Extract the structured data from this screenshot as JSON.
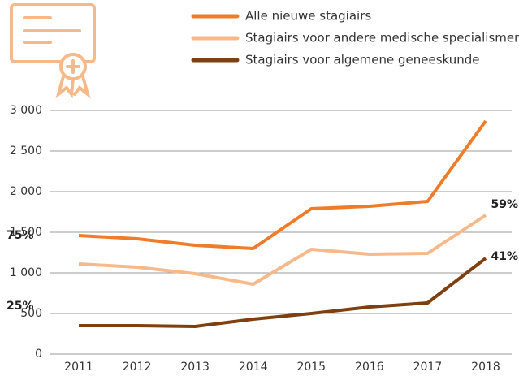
{
  "chart_data": {
    "type": "line",
    "x": [
      "2011",
      "2012",
      "2013",
      "2014",
      "2015",
      "2016",
      "2017",
      "2018"
    ],
    "series": [
      {
        "name": "Alle nieuwe stagiairs",
        "color": "#f07c2a",
        "values": [
          1460,
          1420,
          1340,
          1300,
          1790,
          1820,
          1880,
          2870
        ]
      },
      {
        "name": "Stagiairs voor andere medische specialismen",
        "color": "#f8b98a",
        "values": [
          1110,
          1070,
          990,
          860,
          1290,
          1230,
          1240,
          1710
        ]
      },
      {
        "name": "Stagiairs voor algemene geneeskunde",
        "color": "#7f3f0f",
        "values": [
          350,
          350,
          340,
          430,
          500,
          580,
          630,
          1180
        ]
      }
    ],
    "ylim": [
      0,
      3000
    ],
    "yticks": [
      0,
      500,
      {
        "value": 1000,
        "label": "1 000"
      },
      {
        "value": 1500,
        "label": "1 500"
      },
      {
        "value": 2000,
        "label": "2 000"
      },
      {
        "value": 2500,
        "label": "2 500"
      },
      {
        "value": 3000,
        "label": "3 000"
      }
    ],
    "grid": true,
    "annotations": [
      "75%",
      "25%",
      "59%",
      "41%"
    ]
  }
}
